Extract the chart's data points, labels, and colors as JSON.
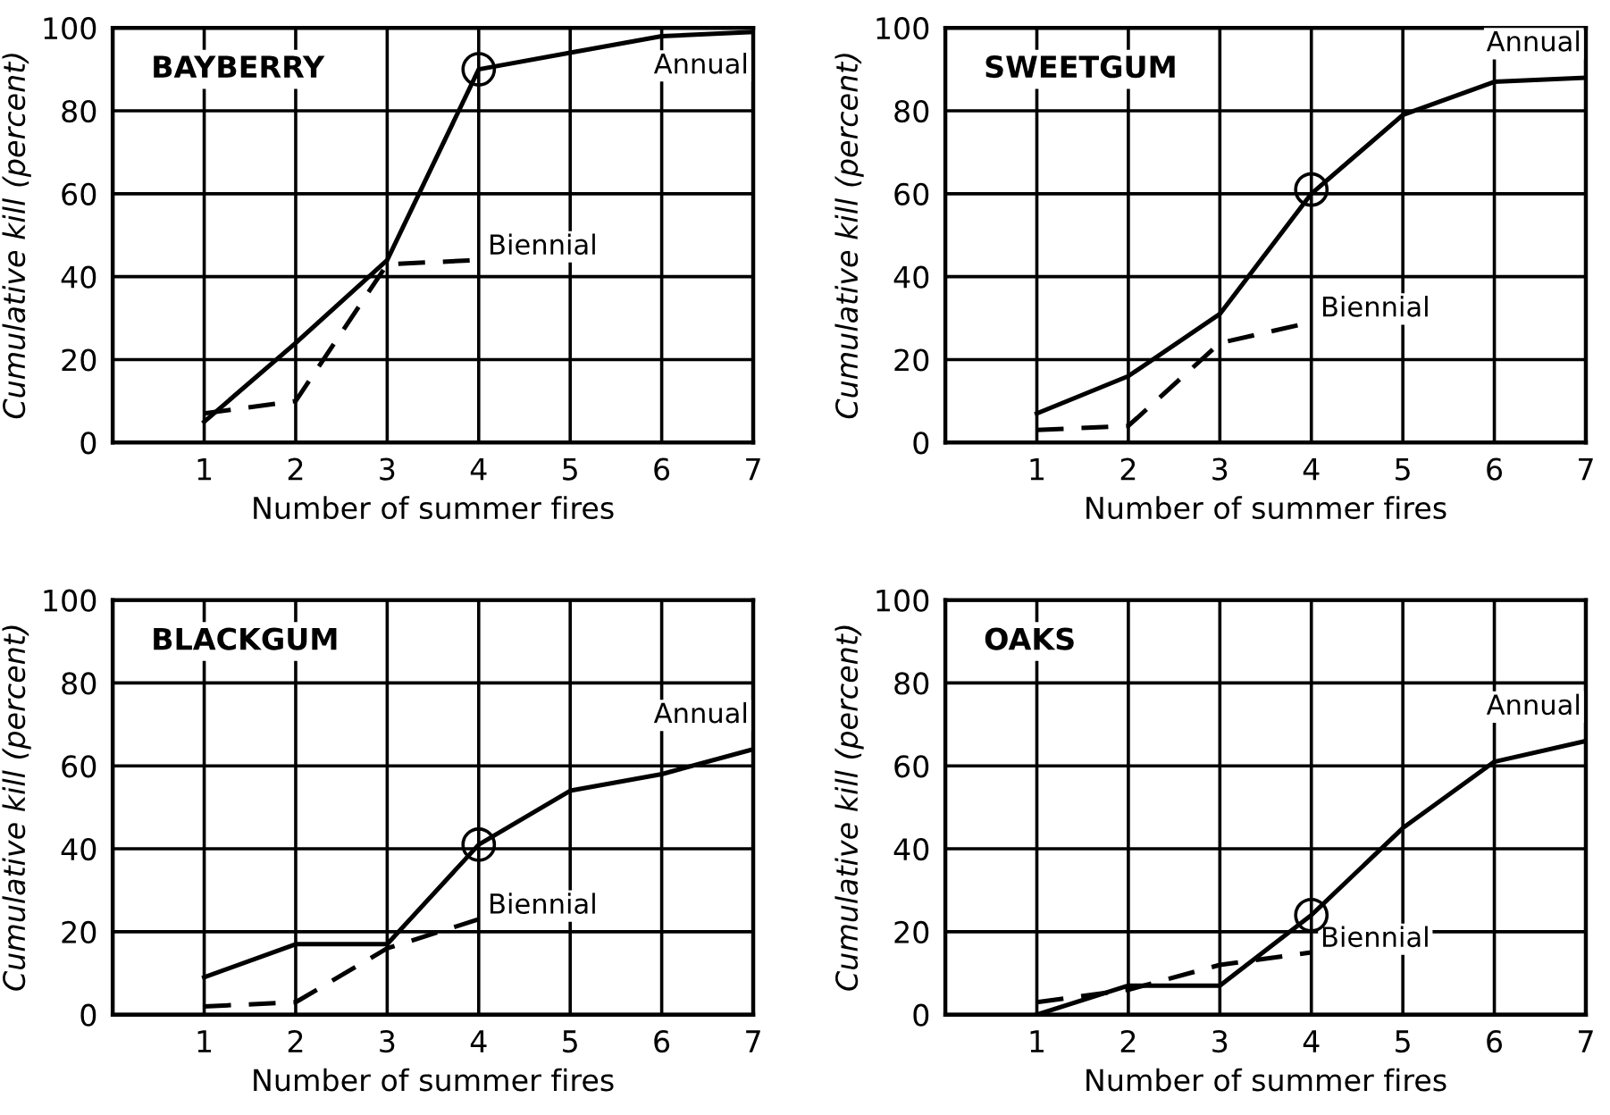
{
  "chart_data": [
    {
      "type": "line",
      "title": "BAYBERRY",
      "xlabel": "Number of summer fires",
      "ylabel": "Cumulative kill (percent)",
      "x": [
        1,
        2,
        3,
        4,
        5,
        6,
        7
      ],
      "xlim": [
        0,
        7
      ],
      "xticks": [
        1,
        2,
        3,
        4,
        5,
        6,
        7
      ],
      "ylim": [
        0,
        100
      ],
      "yticks": [
        0,
        20,
        40,
        60,
        80,
        100
      ],
      "grid": true,
      "series": [
        {
          "name": "Annual",
          "color": "#000000",
          "line_style": "solid",
          "values": [
            5,
            24,
            44,
            90,
            94,
            98,
            99
          ]
        },
        {
          "name": "Biennial",
          "color": "#000000",
          "line_style": "dashed",
          "x": [
            1,
            2,
            3,
            4
          ],
          "values": [
            7,
            10,
            43,
            44
          ]
        },
        {
          "type": "scatter",
          "marker": "circle",
          "color": "#000000",
          "x": [
            4
          ],
          "values": [
            90
          ]
        }
      ]
    },
    {
      "type": "line",
      "title": "SWEETGUM",
      "xlabel": "Number of summer fires",
      "ylabel": "Cumulative kill (percent)",
      "x": [
        1,
        2,
        3,
        4,
        5,
        6,
        7
      ],
      "xlim": [
        0,
        7
      ],
      "xticks": [
        1,
        2,
        3,
        4,
        5,
        6,
        7
      ],
      "ylim": [
        0,
        100
      ],
      "yticks": [
        0,
        20,
        40,
        60,
        80,
        100
      ],
      "grid": true,
      "series": [
        {
          "name": "Annual",
          "color": "#000000",
          "line_style": "solid",
          "values": [
            7,
            16,
            31,
            60,
            79,
            87,
            88
          ]
        },
        {
          "name": "Biennial",
          "color": "#000000",
          "line_style": "dashed",
          "x": [
            1,
            2,
            3,
            4
          ],
          "values": [
            3,
            4,
            24,
            29
          ]
        },
        {
          "type": "scatter",
          "marker": "circle",
          "color": "#000000",
          "x": [
            4
          ],
          "values": [
            61
          ]
        }
      ]
    },
    {
      "type": "line",
      "title": "BLACKGUM",
      "xlabel": "Number of summer fires",
      "ylabel": "Cumulative kill (percent)",
      "x": [
        1,
        2,
        3,
        4,
        5,
        6,
        7
      ],
      "xlim": [
        0,
        7
      ],
      "xticks": [
        1,
        2,
        3,
        4,
        5,
        6,
        7
      ],
      "ylim": [
        0,
        100
      ],
      "yticks": [
        0,
        20,
        40,
        60,
        80,
        100
      ],
      "grid": true,
      "series": [
        {
          "name": "Annual",
          "color": "#000000",
          "line_style": "solid",
          "values": [
            9,
            17,
            17,
            41,
            54,
            58,
            64
          ]
        },
        {
          "name": "Biennial",
          "color": "#000000",
          "line_style": "dashed",
          "x": [
            1,
            2,
            3,
            4
          ],
          "values": [
            2,
            3,
            16,
            23
          ]
        },
        {
          "type": "scatter",
          "marker": "circle",
          "color": "#000000",
          "x": [
            4
          ],
          "values": [
            41
          ]
        }
      ]
    },
    {
      "type": "line",
      "title": "OAKS",
      "xlabel": "Number of summer fires",
      "ylabel": "Cumulative kill (percent)",
      "x": [
        1,
        2,
        3,
        4,
        5,
        6,
        7
      ],
      "xlim": [
        0,
        7
      ],
      "xticks": [
        1,
        2,
        3,
        4,
        5,
        6,
        7
      ],
      "ylim": [
        0,
        100
      ],
      "yticks": [
        0,
        20,
        40,
        60,
        80,
        100
      ],
      "grid": true,
      "series": [
        {
          "name": "Annual",
          "color": "#000000",
          "line_style": "solid",
          "values": [
            0,
            7,
            7,
            24,
            45,
            61,
            66
          ]
        },
        {
          "name": "Biennial",
          "color": "#000000",
          "line_style": "dashed",
          "x": [
            1,
            2,
            3,
            4
          ],
          "values": [
            3,
            6,
            12,
            15
          ]
        },
        {
          "type": "scatter",
          "marker": "circle",
          "color": "#000000",
          "x": [
            4
          ],
          "values": [
            24
          ]
        }
      ]
    }
  ]
}
